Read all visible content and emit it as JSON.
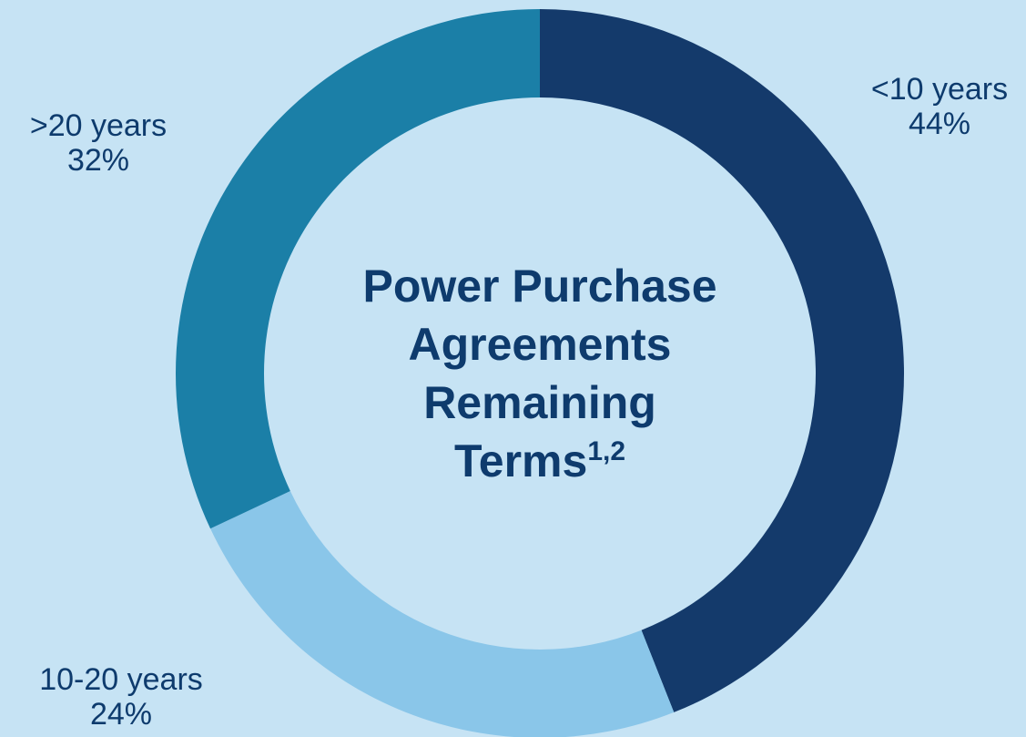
{
  "chart_data": {
    "type": "donut",
    "title": [
      "Power Purchase",
      "Agreements",
      "Remaining",
      "Terms"
    ],
    "title_superscript": "1,2",
    "categories": [
      "<10 years",
      "10-20 years",
      ">20 years"
    ],
    "values": [
      44,
      24,
      32
    ],
    "value_labels": [
      "44%",
      "24%",
      "32%"
    ],
    "colors": [
      "#143a6b",
      "#8ac6e9",
      "#1b7fa7"
    ]
  }
}
